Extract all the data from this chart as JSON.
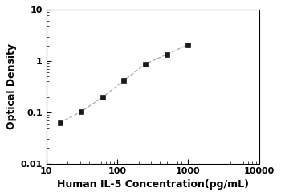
{
  "x_values": [
    15.625,
    31.25,
    62.5,
    125,
    250,
    500,
    1000
  ],
  "y_values": [
    0.063,
    0.104,
    0.198,
    0.42,
    0.88,
    1.35,
    2.1
  ],
  "xlabel": "Human IL-5 Concentration(pg/mL)",
  "ylabel": "Optical Density",
  "xlim": [
    10,
    10000
  ],
  "ylim": [
    0.01,
    10
  ],
  "x_ticks": [
    10,
    100,
    1000,
    10000
  ],
  "x_tick_labels": [
    "10",
    "100",
    "1000",
    "10000"
  ],
  "y_ticks": [
    0.01,
    0.1,
    1,
    10
  ],
  "y_tick_labels": [
    "0.01",
    "0.1",
    "1",
    "10"
  ],
  "line_color": "#aaaaaa",
  "marker_color": "#1a1a1a",
  "marker_style": "s",
  "marker_size": 5,
  "line_style": "--",
  "line_width": 0.9,
  "background_color": "#ffffff",
  "font_size_label": 9,
  "font_size_tick": 8,
  "font_weight": "bold"
}
